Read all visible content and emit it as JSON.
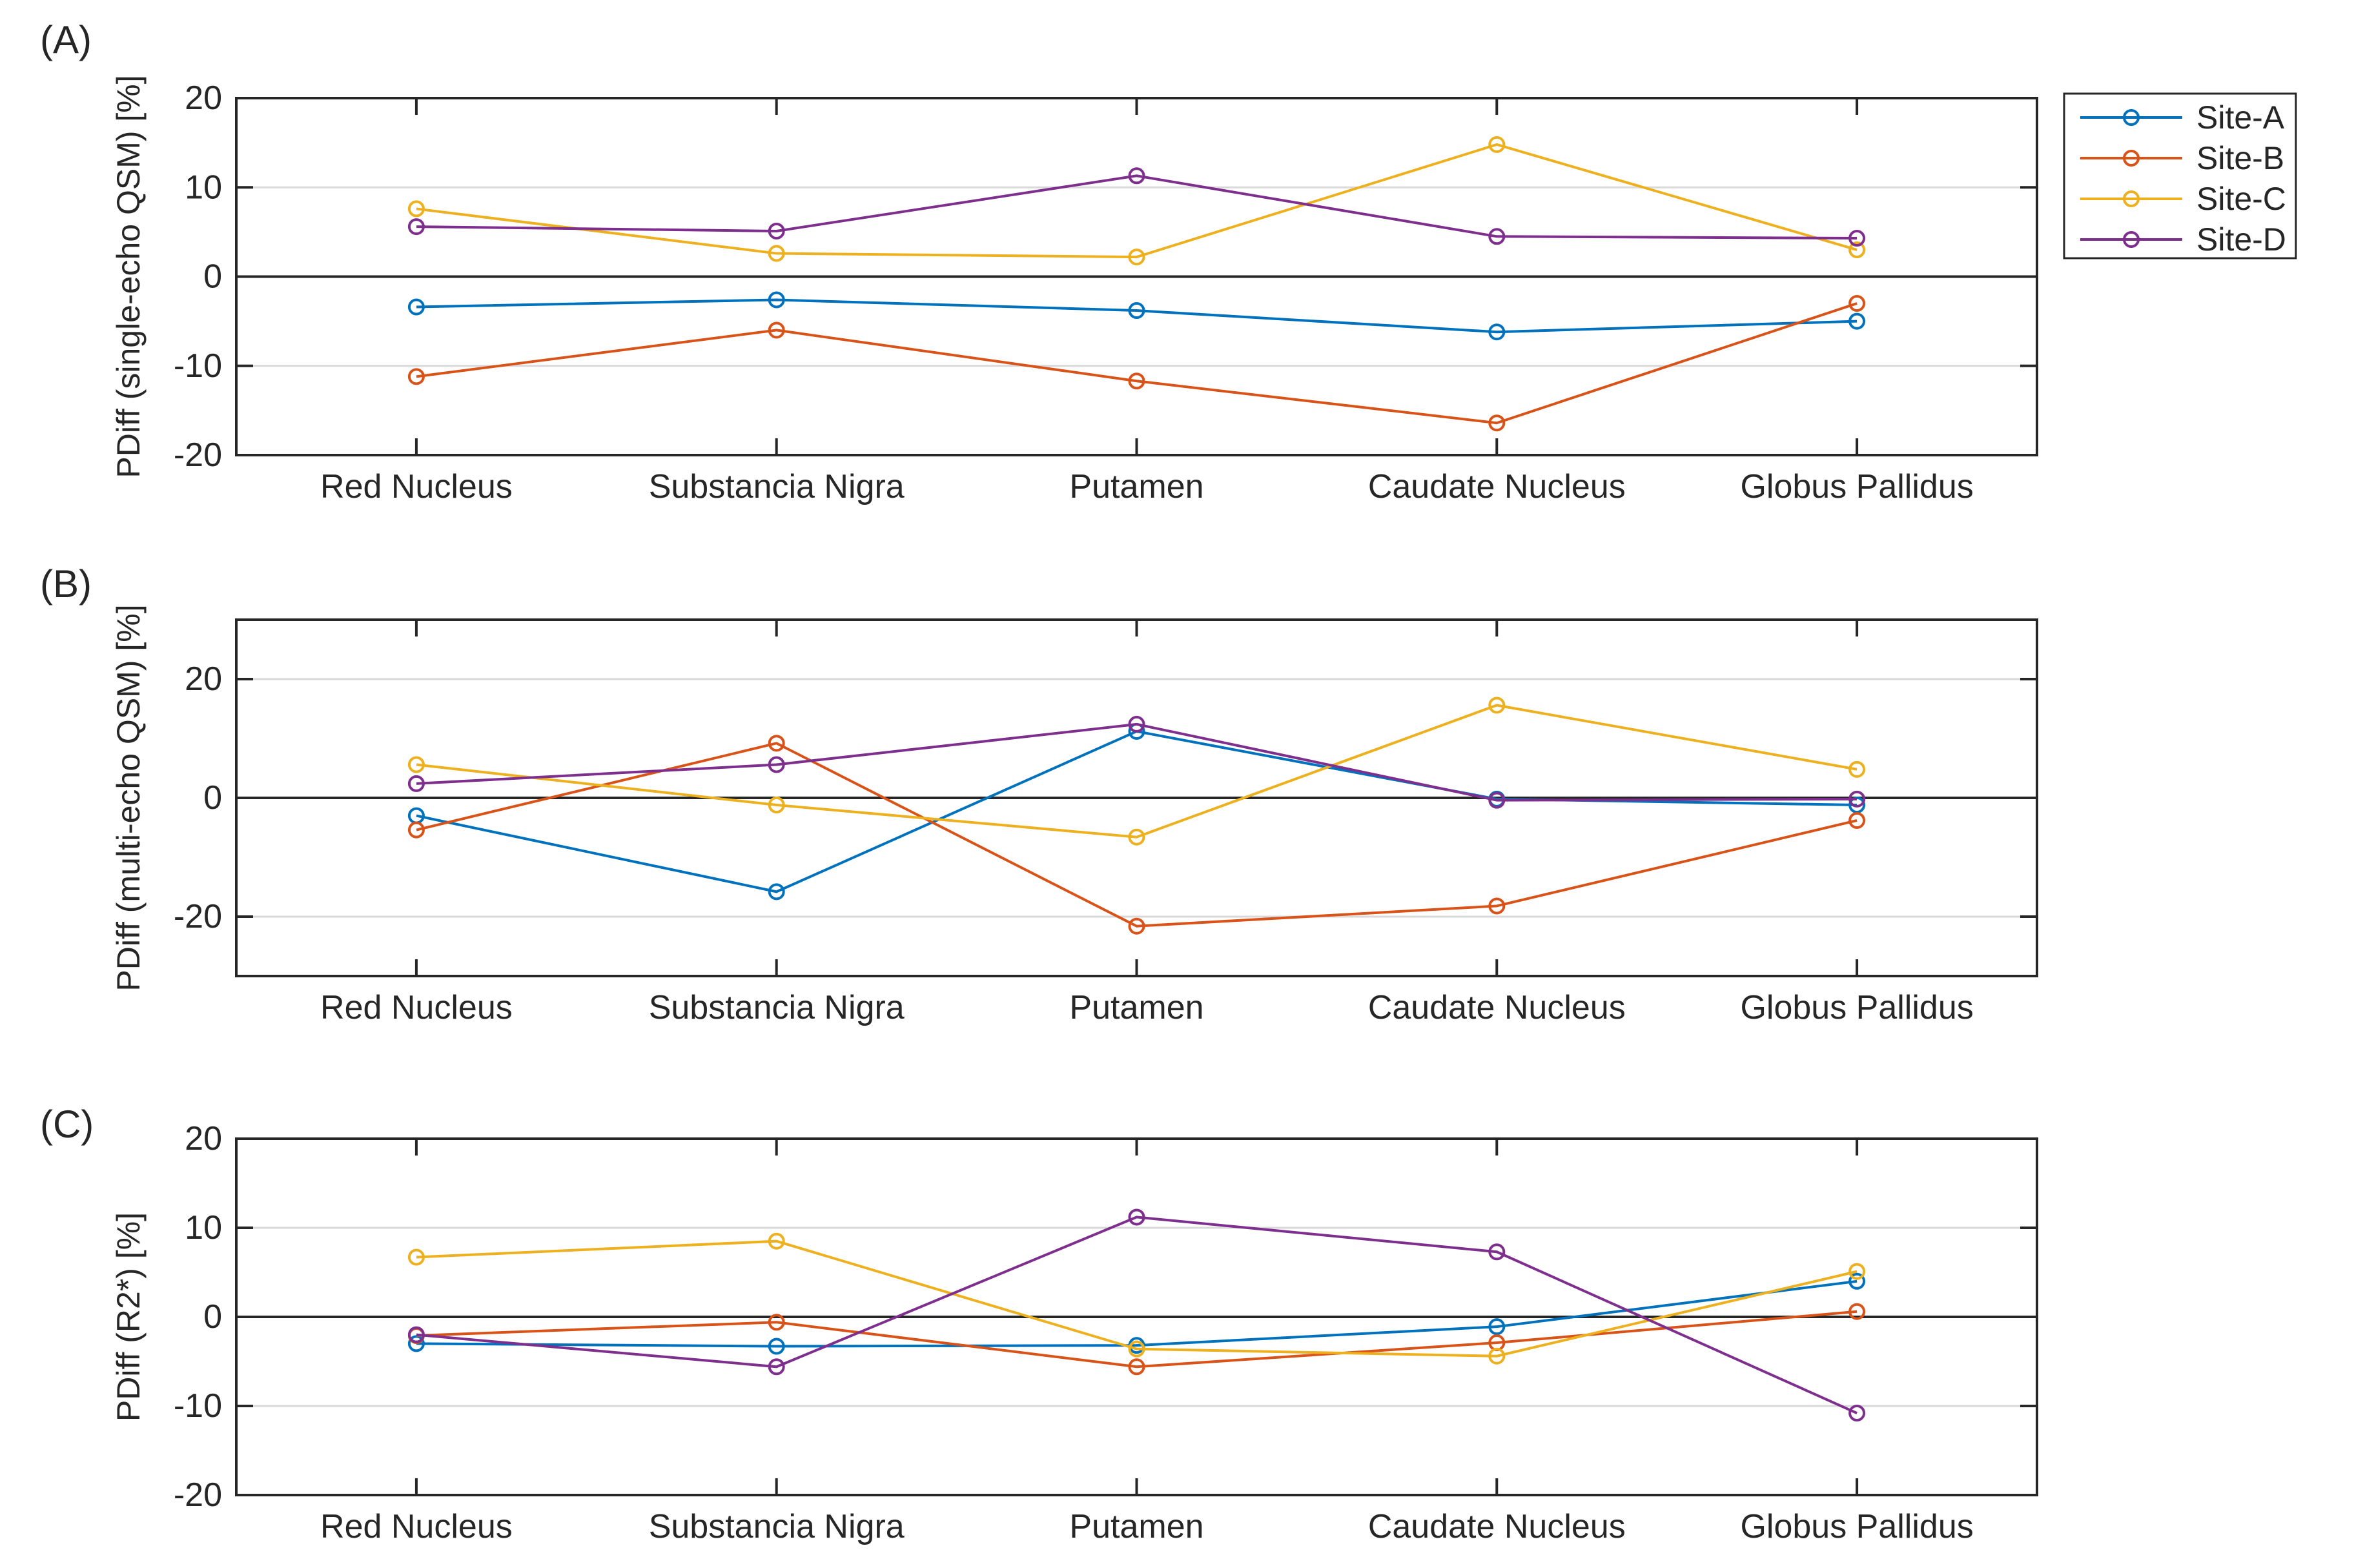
{
  "chart_data": [
    {
      "type": "line",
      "panel_label": "(A)",
      "ylabel": "PDiff (single-echo QSM) [%]",
      "xlabel": "",
      "categories": [
        "Red Nucleus",
        "Substancia Nigra",
        "Putamen",
        "Caudate Nucleus",
        "Globus Pallidus"
      ],
      "ylim": [
        -20,
        20
      ],
      "yticks": [
        -20,
        -10,
        0,
        10,
        20
      ],
      "ytick_labels": [
        "-20",
        "-10",
        "0",
        "10",
        "20"
      ],
      "grid": true,
      "zero_line": true,
      "series": [
        {
          "name": "Site-A",
          "color": "#0072BD",
          "values": [
            -3.4,
            -2.6,
            -3.8,
            -6.2,
            -5.0
          ]
        },
        {
          "name": "Site-B",
          "color": "#D95319",
          "values": [
            -11.2,
            -6.0,
            -11.7,
            -16.4,
            -3.0
          ]
        },
        {
          "name": "Site-C",
          "color": "#EDB120",
          "values": [
            7.6,
            2.6,
            2.2,
            14.8,
            3.0
          ]
        },
        {
          "name": "Site-D",
          "color": "#7E2F8E",
          "values": [
            5.6,
            5.1,
            11.3,
            4.5,
            4.3
          ]
        }
      ]
    },
    {
      "type": "line",
      "panel_label": "(B)",
      "ylabel": "PDiff (multi-echo QSM) [%]",
      "xlabel": "",
      "categories": [
        "Red Nucleus",
        "Substancia Nigra",
        "Putamen",
        "Caudate Nucleus",
        "Globus Pallidus"
      ],
      "ylim": [
        -30,
        30
      ],
      "yticks": [
        -20,
        0,
        20
      ],
      "ytick_labels": [
        "-20",
        "0",
        "20"
      ],
      "grid": true,
      "zero_line": true,
      "series": [
        {
          "name": "Site-A",
          "color": "#0072BD",
          "values": [
            -3.0,
            -15.8,
            11.2,
            -0.2,
            -1.2
          ]
        },
        {
          "name": "Site-B",
          "color": "#D95319",
          "values": [
            -5.4,
            9.2,
            -21.6,
            -18.2,
            -3.8
          ]
        },
        {
          "name": "Site-C",
          "color": "#EDB120",
          "values": [
            5.6,
            -1.2,
            -6.6,
            15.6,
            4.8
          ]
        },
        {
          "name": "Site-D",
          "color": "#7E2F8E",
          "values": [
            2.4,
            5.6,
            12.4,
            -0.4,
            -0.2
          ]
        }
      ]
    },
    {
      "type": "line",
      "panel_label": "(C)",
      "ylabel": "PDiff (R2*) [%]",
      "xlabel": "",
      "categories": [
        "Red Nucleus",
        "Substancia Nigra",
        "Putamen",
        "Caudate Nucleus",
        "Globus Pallidus"
      ],
      "ylim": [
        -20,
        20
      ],
      "yticks": [
        -20,
        -10,
        0,
        10,
        20
      ],
      "ytick_labels": [
        "-20",
        "-10",
        "0",
        "10",
        "20"
      ],
      "grid": true,
      "zero_line": true,
      "series": [
        {
          "name": "Site-A",
          "color": "#0072BD",
          "values": [
            -3.0,
            -3.3,
            -3.2,
            -1.1,
            4.0
          ]
        },
        {
          "name": "Site-B",
          "color": "#D95319",
          "values": [
            -2.1,
            -0.6,
            -5.6,
            -2.9,
            0.6
          ]
        },
        {
          "name": "Site-C",
          "color": "#EDB120",
          "values": [
            6.7,
            8.5,
            -3.6,
            -4.4,
            5.1
          ]
        },
        {
          "name": "Site-D",
          "color": "#7E2F8E",
          "values": [
            -2.0,
            -5.6,
            11.2,
            7.3,
            -10.8
          ]
        }
      ]
    }
  ],
  "legend": {
    "placement": "top-right, outside panel (A)",
    "entries": [
      "Site-A",
      "Site-B",
      "Site-C",
      "Site-D"
    ]
  }
}
